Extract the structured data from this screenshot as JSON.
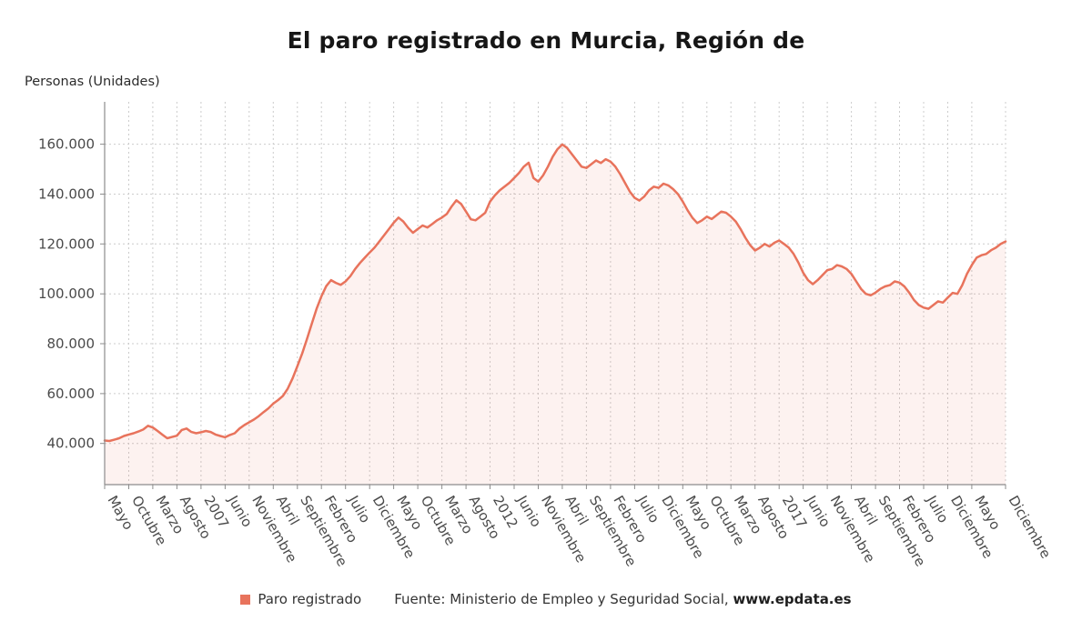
{
  "title": "El paro registrado en Murcia, Región de",
  "y_axis_unit_label": "Personas (Unidades)",
  "legend": {
    "series_label": "Paro registrado",
    "source_prefix": "Fuente: Ministerio de Empleo y Seguridad Social, ",
    "source_link": "www.epdata.es"
  },
  "colors": {
    "line": "#e8735c",
    "fill": "#e8735c",
    "fill_opacity": 0.09,
    "grid": "#cccccc",
    "axis": "#8c8c8c",
    "tick_text": "#4a4a4a",
    "title_text": "#161616"
  },
  "chart_data": {
    "type": "area",
    "title": "El paro registrado en Murcia, Región de",
    "ylabel": "Personas (Unidades)",
    "series_name": "Paro registrado",
    "frequency": "monthly",
    "x_months": {
      "start": "2005-05",
      "end": "2020-12",
      "count": 188
    },
    "ylim": [
      23500,
      177000
    ],
    "y_ticks": [
      40000,
      60000,
      80000,
      100000,
      120000,
      140000,
      160000
    ],
    "grid": true,
    "legend_position": "bottom",
    "x_tick_indices": [
      0,
      5,
      10,
      15,
      20,
      25,
      30,
      35,
      40,
      45,
      50,
      55,
      60,
      65,
      70,
      75,
      80,
      85,
      90,
      95,
      100,
      105,
      110,
      115,
      120,
      125,
      130,
      135,
      140,
      145,
      150,
      155,
      160,
      165,
      170,
      175,
      180,
      187
    ],
    "x_tick_labels": [
      "Mayo",
      "Octubre",
      "Marzo",
      "Agosto",
      "2007",
      "Junio",
      "Noviembre",
      "Abril",
      "Septiembre",
      "Febrero",
      "Julio",
      "Diciembre",
      "Mayo",
      "Octubre",
      "Marzo",
      "Agosto",
      "2012",
      "Junio",
      "Noviembre",
      "Abril",
      "Septiembre",
      "Febrero",
      "Julio",
      "Diciembre",
      "Mayo",
      "Octubre",
      "Marzo",
      "Agosto",
      "2017",
      "Junio",
      "Noviembre",
      "Abril",
      "Septiembre",
      "Febrero",
      "Julio",
      "Diciembre",
      "Mayo",
      "Diciembre"
    ],
    "values": [
      41200,
      41000,
      41500,
      42100,
      43000,
      43600,
      44100,
      44800,
      45600,
      47100,
      46400,
      45000,
      43500,
      42100,
      42600,
      43100,
      45400,
      46000,
      44600,
      44100,
      44500,
      45000,
      44600,
      43600,
      43000,
      42500,
      43400,
      44100,
      46000,
      47400,
      48500,
      49600,
      51000,
      52600,
      54100,
      56000,
      57400,
      59100,
      62000,
      66100,
      71000,
      76100,
      82000,
      88000,
      94000,
      99000,
      103100,
      105500,
      104400,
      103600,
      105000,
      107100,
      110000,
      112400,
      114500,
      116600,
      118500,
      121000,
      123500,
      126000,
      128500,
      130600,
      129000,
      126500,
      124500,
      126000,
      127400,
      126600,
      128000,
      129500,
      130600,
      132000,
      135000,
      137500,
      136000,
      133000,
      129900,
      129500,
      131000,
      132500,
      137000,
      139500,
      141500,
      143000,
      144500,
      146500,
      148500,
      151000,
      152600,
      146500,
      145000,
      147500,
      151000,
      155000,
      158000,
      159900,
      158500,
      156000,
      153500,
      151000,
      150500,
      152000,
      153500,
      152500,
      154000,
      153000,
      151000,
      148000,
      144500,
      141000,
      138500,
      137400,
      139000,
      141500,
      143000,
      142500,
      144200,
      143500,
      142000,
      140000,
      137000,
      133500,
      130500,
      128400,
      129500,
      131000,
      130000,
      131500,
      133000,
      132500,
      131000,
      129000,
      126000,
      122500,
      119500,
      117400,
      118500,
      120000,
      119000,
      120500,
      121400,
      120000,
      118500,
      116000,
      112500,
      108500,
      105500,
      103900,
      105500,
      107500,
      109500,
      110000,
      111500,
      111000,
      110000,
      108000,
      105000,
      102000,
      100000,
      99400,
      100500,
      102000,
      103000,
      103500,
      105000,
      104500,
      103000,
      100500,
      97500,
      95500,
      94500,
      94000,
      95500,
      97000,
      96500,
      98500,
      100400,
      100000,
      103500,
      108000,
      111500,
      114500,
      115500,
      116000,
      117500,
      118500,
      120000,
      121000
    ]
  }
}
